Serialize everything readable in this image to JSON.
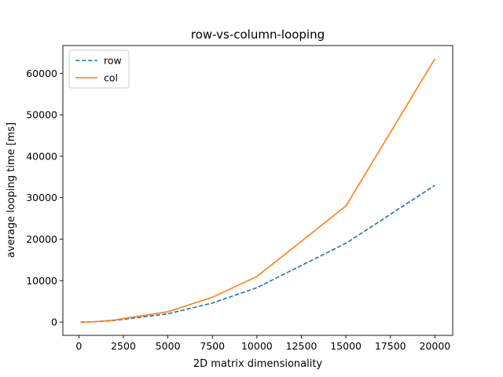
{
  "chart_data": {
    "type": "line",
    "title": "row-vs-column-looping",
    "xlabel": "2D matrix dimensionality",
    "ylabel": "average looping time [ms]",
    "xlim": [
      -900,
      21000
    ],
    "ylim": [
      -3200,
      66700
    ],
    "xticks": [
      0,
      2500,
      5000,
      7500,
      10000,
      12500,
      15000,
      17500,
      20000
    ],
    "yticks": [
      0,
      10000,
      20000,
      30000,
      40000,
      50000,
      60000
    ],
    "grid": false,
    "legend_position": "top-left",
    "series": [
      {
        "name": "row",
        "color": "#1f77b4",
        "style": "dashed",
        "x": [
          100,
          500,
          1000,
          2000,
          5000,
          7500,
          10000,
          15000,
          20000
        ],
        "y": [
          0,
          20,
          100,
          400,
          2000,
          4600,
          8300,
          19000,
          33000
        ]
      },
      {
        "name": "col",
        "color": "#ff7f0e",
        "style": "solid",
        "x": [
          100,
          500,
          1000,
          2000,
          5000,
          7500,
          10000,
          15000,
          20000
        ],
        "y": [
          0,
          25,
          120,
          500,
          2500,
          6000,
          11000,
          28000,
          63500
        ]
      }
    ]
  }
}
